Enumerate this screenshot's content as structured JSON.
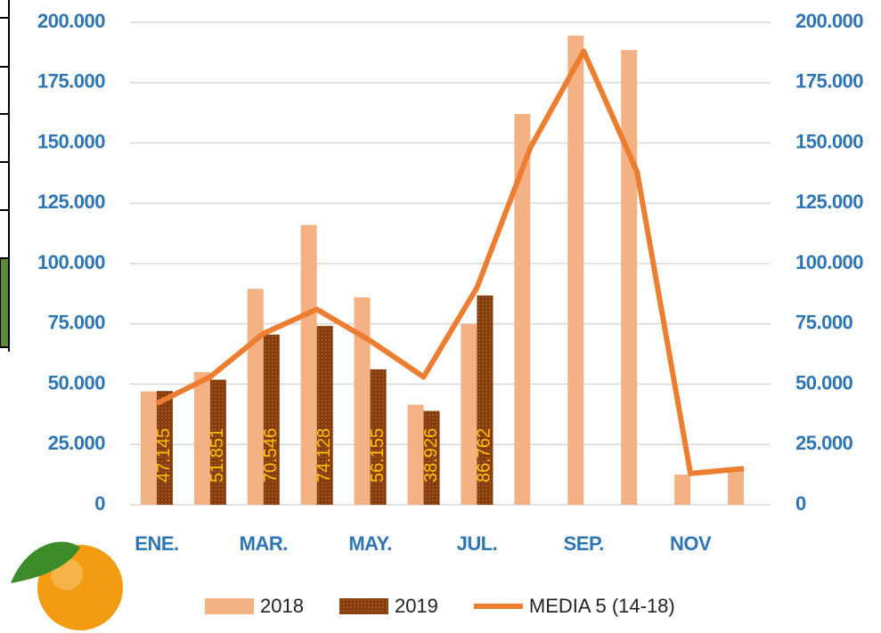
{
  "chart_data": {
    "type": "bar",
    "categories": [
      "ENE.",
      null,
      "MAR.",
      null,
      "MAY.",
      null,
      "JUL.",
      null,
      "SEP.",
      null,
      "NOV",
      null
    ],
    "series": [
      {
        "name": "2018",
        "color": "#f4b183",
        "values": [
          47000,
          55000,
          89500,
          116000,
          86000,
          41500,
          75000,
          162000,
          194500,
          188500,
          12500,
          14000
        ]
      },
      {
        "name": "2019",
        "color": "#843c0c",
        "values": [
          47145,
          51851,
          70546,
          74128,
          56155,
          38926,
          86762,
          null,
          null,
          null,
          null,
          null
        ],
        "value_labels": [
          "47.145",
          "51.851",
          "70.546",
          "74.128",
          "56.155",
          "38.926",
          "86.762",
          null,
          null,
          null,
          null,
          null
        ]
      },
      {
        "name": "MEDIA 5 (14-18)",
        "color": "#ed7d31",
        "type": "line",
        "axis": "y2",
        "values": [
          42000,
          53000,
          71000,
          81000,
          68000,
          53000,
          90000,
          148000,
          188000,
          138000,
          13000,
          15000
        ]
      }
    ],
    "ylim": [
      0,
      200000
    ],
    "yticks": [
      0,
      {
        "value": 25000,
        "label": "25.000"
      },
      {
        "value": 50000,
        "label": "50.000"
      },
      {
        "value": 75000,
        "label": "75.000"
      },
      {
        "value": 100000,
        "label": "100.000"
      },
      {
        "value": 125000,
        "label": "125.000"
      },
      {
        "value": 150000,
        "label": "150.000"
      },
      {
        "value": 175000,
        "label": "175.000"
      },
      {
        "value": 200000,
        "label": "200.000"
      }
    ],
    "y2lim": [
      0,
      200000
    ],
    "y2ticks": [
      0,
      {
        "value": 25000,
        "label": "25.000"
      },
      {
        "value": 50000,
        "label": "50.000"
      },
      {
        "value": 75000,
        "label": "75.000"
      },
      {
        "value": 100000,
        "label": "100.000"
      },
      {
        "value": 125000,
        "label": "125.000"
      },
      {
        "value": 150000,
        "label": "150.000"
      },
      {
        "value": 175000,
        "label": "175.000"
      },
      {
        "value": 200000,
        "label": "200.000"
      }
    ],
    "grid": true,
    "legend": "bottom"
  }
}
